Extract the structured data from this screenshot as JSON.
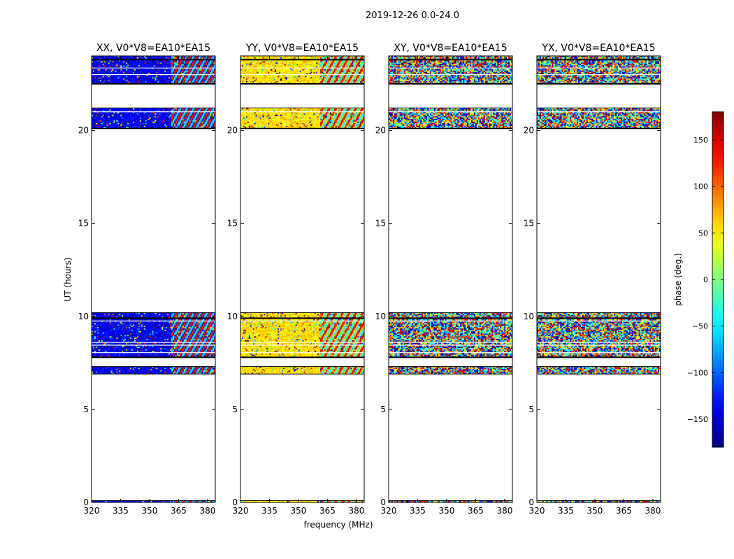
{
  "suptitle": "2019-12-26 0.0-24.0",
  "chart_data": {
    "type": "heatmap",
    "x_label": "frequency (MHz)",
    "y_label": "UT (hours)",
    "xlim": [
      320,
      384
    ],
    "ylim": [
      0,
      24
    ],
    "x_ticks": [
      320,
      335,
      350,
      365,
      380
    ],
    "y_ticks": [
      0,
      5,
      10,
      15,
      20
    ],
    "colormap": "jet",
    "colorbar": {
      "label": "phase (deg.)",
      "range": [
        -180,
        180
      ],
      "ticks": [
        -150,
        -100,
        -50,
        0,
        50,
        100,
        150
      ],
      "tick_labels": [
        "−150",
        "−100",
        "−50",
        "0",
        "50",
        "100",
        "150"
      ]
    },
    "observation_blocks_ut": [
      [
        0.0,
        0.1
      ],
      [
        6.9,
        7.3
      ],
      [
        7.8,
        10.2
      ],
      [
        20.1,
        21.2
      ],
      [
        22.5,
        24.0
      ]
    ],
    "band_split_mhz": 361,
    "panels": [
      {
        "title": "XX, V0*V8=EA10*EA15",
        "mean_phase_deg": -140,
        "spread_deg": 40,
        "noise_fraction": 0.12
      },
      {
        "title": "YY, V0*V8=EA10*EA15",
        "mean_phase_deg": 55,
        "spread_deg": 40,
        "noise_fraction": 0.12
      },
      {
        "title": "XY, V0*V8=EA10*EA15",
        "mean_phase_deg": 0,
        "spread_deg": 180,
        "noise_fraction": 1.0
      },
      {
        "title": "YX, V0*V8=EA10*EA15",
        "mean_phase_deg": 0,
        "spread_deg": 180,
        "noise_fraction": 1.0
      }
    ]
  }
}
